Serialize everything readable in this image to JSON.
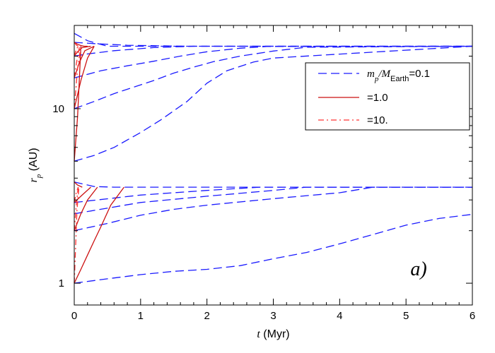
{
  "chart_data": {
    "type": "line",
    "panel_label": "a)",
    "x_axis": {
      "label_var": "t",
      "label_unit": " (Myr)",
      "range": [
        0,
        6
      ],
      "ticks": [
        0,
        1,
        2,
        3,
        4,
        5,
        6
      ],
      "tick_labels": [
        "0",
        "1",
        "2",
        "3",
        "4",
        "5",
        "6"
      ]
    },
    "y_axis": {
      "label_var": "r",
      "label_sub": "p",
      "label_unit": " (AU)",
      "scale": "log",
      "range": [
        0.75,
        30
      ],
      "major_ticks": [
        1,
        10
      ],
      "tick_labels": [
        "1",
        "10"
      ],
      "minor_ticks": [
        2,
        3,
        4,
        5,
        6,
        7,
        8,
        9,
        20,
        30
      ]
    },
    "legend": {
      "location": "upper-right",
      "entries": [
        {
          "style": "dashed",
          "color": "#1a1aff",
          "label_parts": [
            "m",
            "p",
            "/",
            "M",
            "Earth",
            "=0.1"
          ]
        },
        {
          "style": "solid",
          "color": "#cc1111",
          "label": "=1.0"
        },
        {
          "style": "dashdot",
          "color": "#ff3333",
          "label": "=10."
        }
      ]
    },
    "series": [
      {
        "group": "0.1",
        "style": "dashed",
        "color": "#1a1aff",
        "x": [
          0,
          0.2,
          0.5,
          6
        ],
        "y": [
          27,
          24.5,
          22.8,
          22.8
        ]
      },
      {
        "group": "0.1",
        "style": "dashed",
        "color": "#1a1aff",
        "x": [
          0,
          0.3,
          0.8,
          1.7,
          6
        ],
        "y": [
          24,
          23.6,
          23.1,
          22.8,
          22.8
        ]
      },
      {
        "group": "0.1",
        "style": "dashed",
        "color": "#1a1aff",
        "x": [
          0,
          0.2,
          0.6,
          1.2,
          1.8,
          6
        ],
        "y": [
          20,
          20.6,
          21.5,
          22.4,
          22.8,
          22.8
        ]
      },
      {
        "group": "0.1",
        "style": "dashed",
        "color": "#1a1aff",
        "x": [
          0,
          0.4,
          0.8,
          1.2,
          1.6,
          2.0,
          2.5,
          2.9,
          6
        ],
        "y": [
          15,
          16.5,
          17.6,
          18.7,
          20,
          21.2,
          22.2,
          22.7,
          22.8
        ]
      },
      {
        "group": "0.1",
        "style": "dashed",
        "color": "#1a1aff",
        "x": [
          0,
          0.3,
          0.6,
          0.9,
          1.2,
          1.5,
          1.8,
          2.1,
          2.5,
          3.0,
          3.5,
          6
        ],
        "y": [
          10,
          11,
          12.2,
          13.3,
          14.5,
          16,
          17.3,
          18.6,
          20,
          21.4,
          22.5,
          22.8
        ]
      },
      {
        "group": "0.1",
        "style": "dashed",
        "color": "#1a1aff",
        "x": [
          0,
          0.3,
          0.6,
          1.0,
          1.3,
          1.7,
          2.0,
          2.3,
          2.7,
          3.0,
          6
        ],
        "y": [
          5,
          5.4,
          6,
          7.3,
          8.6,
          11,
          14,
          16.5,
          18.5,
          19.5,
          22.8
        ]
      },
      {
        "group": "0.1",
        "style": "dashed",
        "color": "#1a1aff",
        "x": [
          0,
          0.3,
          0.6,
          6
        ],
        "y": [
          3.8,
          3.58,
          3.55,
          3.55
        ]
      },
      {
        "group": "0.1",
        "style": "dashed",
        "color": "#1a1aff",
        "x": [
          0,
          1.0,
          2.0,
          2.8,
          6
        ],
        "y": [
          2.9,
          3.2,
          3.4,
          3.55,
          3.55
        ]
      },
      {
        "group": "0.1",
        "style": "dashed",
        "color": "#1a1aff",
        "x": [
          0,
          1.0,
          2.0,
          3.0,
          3.5,
          6
        ],
        "y": [
          2.5,
          2.9,
          3.15,
          3.4,
          3.55,
          3.55
        ]
      },
      {
        "group": "0.1",
        "style": "dashed",
        "color": "#1a1aff",
        "x": [
          0,
          0.5,
          1.0,
          1.5,
          2.0,
          3.0,
          4.0,
          4.5,
          6
        ],
        "y": [
          2.0,
          2.2,
          2.45,
          2.65,
          2.8,
          3.05,
          3.3,
          3.55,
          3.55
        ]
      },
      {
        "group": "0.1",
        "style": "dashed",
        "color": "#1a1aff",
        "x": [
          0,
          0.5,
          1.0,
          1.5,
          2.0,
          2.5,
          3.0,
          3.5,
          4.0,
          4.5,
          5.0,
          5.5,
          6.0
        ],
        "y": [
          1.0,
          1.06,
          1.12,
          1.17,
          1.2,
          1.26,
          1.38,
          1.5,
          1.68,
          1.9,
          2.15,
          2.35,
          2.48
        ]
      },
      {
        "group": "1.0",
        "style": "solid",
        "color": "#cc1111",
        "x": [
          0,
          0.05,
          0.1,
          0.15,
          0.2
        ],
        "y": [
          24,
          23.4,
          23,
          22.8,
          22.8
        ]
      },
      {
        "group": "1.0",
        "style": "solid",
        "color": "#cc1111",
        "x": [
          0,
          0.05,
          0.12,
          0.25
        ],
        "y": [
          20,
          21.2,
          22.4,
          22.8
        ]
      },
      {
        "group": "1.0",
        "style": "solid",
        "color": "#cc1111",
        "x": [
          0,
          0.08,
          0.16,
          0.3
        ],
        "y": [
          15,
          18.5,
          21.5,
          22.8
        ]
      },
      {
        "group": "1.0",
        "style": "solid",
        "color": "#cc1111",
        "x": [
          0,
          0.1,
          0.2,
          0.3
        ],
        "y": [
          10,
          14.5,
          19.5,
          22.8
        ]
      },
      {
        "group": "1.0",
        "style": "solid",
        "color": "#cc1111",
        "x": [
          0,
          0.05,
          0.1
        ],
        "y": [
          5,
          9,
          22.8
        ]
      },
      {
        "group": "1.0",
        "style": "solid",
        "color": "#cc1111",
        "x": [
          0,
          0.05,
          0.12
        ],
        "y": [
          3.8,
          3.65,
          3.55
        ]
      },
      {
        "group": "1.0",
        "style": "solid",
        "color": "#cc1111",
        "x": [
          0,
          0.1,
          0.25
        ],
        "y": [
          2.9,
          3.15,
          3.55
        ]
      },
      {
        "group": "1.0",
        "style": "solid",
        "color": "#cc1111",
        "x": [
          0,
          0.1,
          0.2,
          0.35
        ],
        "y": [
          2.0,
          2.5,
          3.0,
          3.55
        ]
      },
      {
        "group": "1.0",
        "style": "solid",
        "color": "#cc1111",
        "x": [
          0,
          0.1,
          0.2,
          0.3,
          0.4,
          0.55,
          0.75
        ],
        "y": [
          1.0,
          1.2,
          1.45,
          1.75,
          2.1,
          2.8,
          3.55
        ]
      },
      {
        "group": "10.",
        "style": "dashdot",
        "color": "#ff3333",
        "x": [
          0,
          0.03,
          0.06
        ],
        "y": [
          24,
          23.2,
          22.8
        ]
      },
      {
        "group": "10.",
        "style": "dashdot",
        "color": "#ff3333",
        "x": [
          0,
          0.03,
          0.06
        ],
        "y": [
          20,
          21.8,
          22.8
        ]
      },
      {
        "group": "10.",
        "style": "dashdot",
        "color": "#ff3333",
        "x": [
          0,
          0.04,
          0.08
        ],
        "y": [
          15,
          19,
          22.8
        ]
      },
      {
        "group": "10.",
        "style": "dashdot",
        "color": "#ff3333",
        "x": [
          0,
          0.05,
          0.1
        ],
        "y": [
          10,
          17,
          22.8
        ]
      },
      {
        "group": "10.",
        "style": "dashdot",
        "color": "#ff3333",
        "x": [
          0,
          0.03,
          0.06
        ],
        "y": [
          2.9,
          3.3,
          3.55
        ]
      },
      {
        "group": "10.",
        "style": "dashdot",
        "color": "#ff3333",
        "x": [
          0,
          0.03,
          0.06
        ],
        "y": [
          2.0,
          2.8,
          3.55
        ]
      },
      {
        "group": "10.",
        "style": "dashdot",
        "color": "#ff3333",
        "x": [
          0,
          0.02,
          0.04,
          0.07
        ],
        "y": [
          1.0,
          1.6,
          2.6,
          3.55
        ]
      }
    ]
  }
}
